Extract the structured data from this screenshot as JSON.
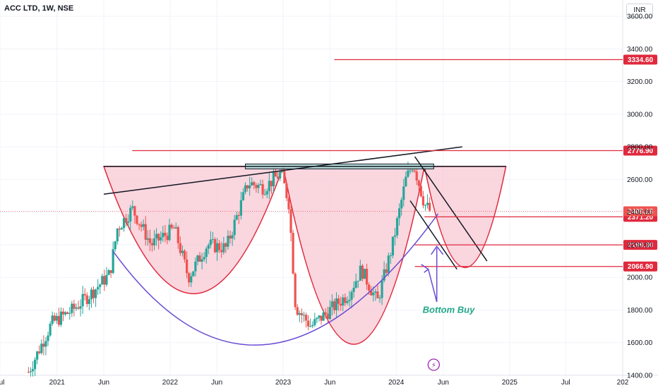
{
  "header": {
    "title": "ACC LTD, 1W, NSE",
    "currency": "INR"
  },
  "colors": {
    "up": "#26a69a",
    "down": "#ef5350",
    "level": "#e0293d",
    "cup_fill": "#f8c8d4",
    "purple": "#6a4bd3",
    "black": "#131722",
    "text_green": "#22a88a"
  },
  "chart_data": {
    "type": "candlestick",
    "title": "ACC LTD, 1W, NSE",
    "currency": "INR",
    "ylim": [
      1400,
      3700
    ],
    "y_ticks": [
      1400,
      1600,
      1800,
      2000,
      2200,
      2400,
      2600,
      2800,
      3000,
      3200,
      3400,
      3600
    ],
    "y_tick_labels": [
      "1400.00",
      "1600.00",
      "1800.00",
      "2000.00",
      "2200.00",
      "2400.00",
      "2600.00",
      "2800.00",
      "3000.00",
      "3200.00",
      "3400.00",
      "3600.00"
    ],
    "x_range": [
      "2020-07-01",
      "2026-01-01"
    ],
    "x_ticks": [
      {
        "label": "Jul",
        "date": "2020-07-01"
      },
      {
        "label": "2021",
        "date": "2021-01-01"
      },
      {
        "label": "Jun",
        "date": "2021-06-01"
      },
      {
        "label": "2022",
        "date": "2022-01-01"
      },
      {
        "label": "Jun",
        "date": "2022-06-01"
      },
      {
        "label": "2023",
        "date": "2023-01-01"
      },
      {
        "label": "Jun",
        "date": "2023-06-01"
      },
      {
        "label": "2024",
        "date": "2024-01-01"
      },
      {
        "label": "Jun",
        "date": "2024-06-01"
      },
      {
        "label": "2025",
        "date": "2025-01-01"
      },
      {
        "label": "Jul",
        "date": "2025-07-01"
      },
      {
        "label": "202",
        "date": "2026-01-01"
      }
    ],
    "price_anchors": [
      {
        "date": "2020-10-01",
        "close": 1420
      },
      {
        "date": "2020-12-15",
        "close": 1720
      },
      {
        "date": "2021-02-20",
        "close": 1800
      },
      {
        "date": "2021-04-20",
        "close": 1900
      },
      {
        "date": "2021-06-20",
        "close": 2020
      },
      {
        "date": "2021-07-15",
        "close": 2300
      },
      {
        "date": "2021-09-01",
        "close": 2420
      },
      {
        "date": "2021-11-01",
        "close": 2200
      },
      {
        "date": "2022-01-15",
        "close": 2300
      },
      {
        "date": "2022-03-01",
        "close": 2000
      },
      {
        "date": "2022-05-01",
        "close": 2200
      },
      {
        "date": "2022-07-01",
        "close": 2180
      },
      {
        "date": "2022-09-10",
        "close": 2580
      },
      {
        "date": "2022-11-01",
        "close": 2550
      },
      {
        "date": "2022-12-25",
        "close": 2640
      },
      {
        "date": "2023-01-20",
        "close": 2450
      },
      {
        "date": "2023-02-10",
        "close": 1820
      },
      {
        "date": "2023-04-01",
        "close": 1700
      },
      {
        "date": "2023-06-01",
        "close": 1800
      },
      {
        "date": "2023-08-01",
        "close": 1900
      },
      {
        "date": "2023-09-10",
        "close": 2050
      },
      {
        "date": "2023-11-01",
        "close": 1850
      },
      {
        "date": "2023-12-20",
        "close": 2200
      },
      {
        "date": "2024-02-01",
        "close": 2600
      },
      {
        "date": "2024-02-25",
        "close": 2700
      },
      {
        "date": "2024-04-01",
        "close": 2450
      },
      {
        "date": "2024-04-20",
        "close": 2405
      }
    ],
    "last_price": 2405.15,
    "levels": [
      {
        "value": 3334.6,
        "label": "3334.60",
        "from": "2023-06-15"
      },
      {
        "value": 2776.9,
        "label": "2776.90",
        "from": "2021-09-01"
      },
      {
        "value": 2371.2,
        "label": "2371.20",
        "from": "2024-04-01"
      },
      {
        "value": 2199.3,
        "label": "2199.30",
        "from": "2024-03-01"
      },
      {
        "value": 2066.9,
        "label": "2066.90",
        "from": "2024-03-01"
      }
    ],
    "cup_handles": [
      {
        "rim": 2680,
        "from": "2021-06-01",
        "to": "2023-01-01",
        "bottom": 1900
      },
      {
        "rim": 2680,
        "from": "2023-01-01",
        "to": "2024-04-01",
        "bottom": 1590
      },
      {
        "rim": 2680,
        "from": "2024-04-01",
        "to": "2024-12-20",
        "bottom": 2060
      }
    ],
    "big_cup": {
      "from": "2021-07-01",
      "to": "2024-05-15",
      "left_y": 2160,
      "bottom": 1590,
      "right_y": 2390
    },
    "trendlines": [
      {
        "from": [
          "2021-06-01",
          2680
        ],
        "to": [
          "2024-12-20",
          2680
        ]
      },
      {
        "from": [
          "2021-06-01",
          2510
        ],
        "to": [
          "2024-08-01",
          2800
        ]
      },
      {
        "from": [
          "2024-03-01",
          2740
        ],
        "to": [
          "2024-10-20",
          2100
        ]
      },
      {
        "from": [
          "2024-02-15",
          2470
        ],
        "to": [
          "2024-07-15",
          2050
        ]
      }
    ],
    "resistance_box": {
      "from": "2022-09-01",
      "to": "2024-05-01",
      "low": 2665,
      "high": 2695
    },
    "annotation": {
      "text": "Bottom Buy",
      "date": "2024-05-20",
      "value": 1800
    }
  }
}
